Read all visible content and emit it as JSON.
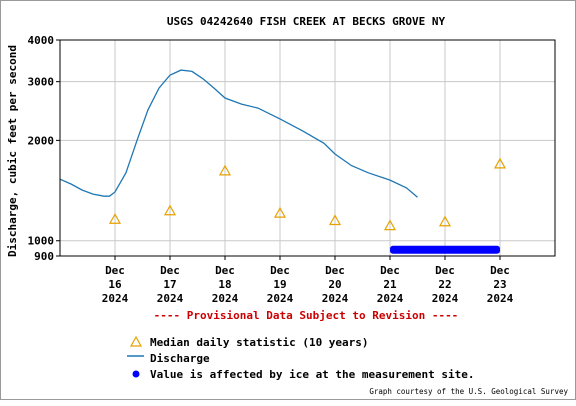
{
  "chart_data": {
    "type": "line",
    "title": "USGS 04242640 FISH CREEK AT BECKS GROVE NY",
    "ylabel": "Discharge, cubic feet per second",
    "y_scale": "log",
    "ylim": [
      900,
      4000
    ],
    "y_ticks": [
      900,
      1000,
      2000,
      3000,
      4000
    ],
    "x_ticks": [
      {
        "value": "2024-12-16",
        "lines": [
          "Dec",
          "16",
          "2024"
        ]
      },
      {
        "value": "2024-12-17",
        "lines": [
          "Dec",
          "17",
          "2024"
        ]
      },
      {
        "value": "2024-12-18",
        "lines": [
          "Dec",
          "18",
          "2024"
        ]
      },
      {
        "value": "2024-12-19",
        "lines": [
          "Dec",
          "19",
          "2024"
        ]
      },
      {
        "value": "2024-12-20",
        "lines": [
          "Dec",
          "20",
          "2024"
        ]
      },
      {
        "value": "2024-12-21",
        "lines": [
          "Dec",
          "21",
          "2024"
        ]
      },
      {
        "value": "2024-12-22",
        "lines": [
          "Dec",
          "22",
          "2024"
        ]
      },
      {
        "value": "2024-12-23",
        "lines": [
          "Dec",
          "23",
          "2024"
        ]
      }
    ],
    "xlim": [
      "2024-12-15T00:00",
      "2024-12-24T00:00"
    ],
    "series": [
      {
        "name": "Discharge",
        "color": "#1f77b4",
        "points": [
          [
            "2024-12-15T00:00",
            1530
          ],
          [
            "2024-12-15T04:48",
            1480
          ],
          [
            "2024-12-15T09:36",
            1420
          ],
          [
            "2024-12-15T14:24",
            1380
          ],
          [
            "2024-12-15T19:12",
            1360
          ],
          [
            "2024-12-15T21:36",
            1360
          ],
          [
            "2024-12-16T00:00",
            1400
          ],
          [
            "2024-12-16T04:48",
            1600
          ],
          [
            "2024-12-16T09:36",
            2000
          ],
          [
            "2024-12-16T14:24",
            2470
          ],
          [
            "2024-12-16T19:12",
            2870
          ],
          [
            "2024-12-17T00:00",
            3140
          ],
          [
            "2024-12-17T04:48",
            3250
          ],
          [
            "2024-12-17T09:36",
            3220
          ],
          [
            "2024-12-17T14:24",
            3060
          ],
          [
            "2024-12-17T19:12",
            2870
          ],
          [
            "2024-12-18T00:00",
            2680
          ],
          [
            "2024-12-18T07:12",
            2570
          ],
          [
            "2024-12-18T14:24",
            2500
          ],
          [
            "2024-12-19T00:00",
            2320
          ],
          [
            "2024-12-19T09:36",
            2140
          ],
          [
            "2024-12-19T19:12",
            1960
          ],
          [
            "2024-12-20T00:00",
            1820
          ],
          [
            "2024-12-20T07:12",
            1680
          ],
          [
            "2024-12-20T14:24",
            1600
          ],
          [
            "2024-12-21T00:00",
            1520
          ],
          [
            "2024-12-21T07:12",
            1440
          ],
          [
            "2024-12-21T12:00",
            1350
          ]
        ]
      },
      {
        "name": "Median daily statistic (10 years)",
        "color": "#e6a100",
        "points": [
          [
            "2024-12-16T00:00",
            1160
          ],
          [
            "2024-12-17T00:00",
            1230
          ],
          [
            "2024-12-18T00:00",
            1620
          ],
          [
            "2024-12-19T00:00",
            1210
          ],
          [
            "2024-12-20T00:00",
            1150
          ],
          [
            "2024-12-21T00:00",
            1110
          ],
          [
            "2024-12-22T00:00",
            1140
          ],
          [
            "2024-12-23T00:00",
            1700
          ]
        ]
      },
      {
        "name": "Value is affected by ice at the measurement site.",
        "color": "#0000ff",
        "range": [
          "2024-12-21T00:00",
          "2024-12-23T00:00"
        ],
        "value": 940
      }
    ],
    "grid": true,
    "legend_position": "bottom-left"
  },
  "notice": "---- Provisional Data Subject to Revision ----",
  "credit": "Graph courtesy of the U.S. Geological Survey",
  "colors": {
    "notice": "#cc0000",
    "grid": "#c8c8c8",
    "axis": "#000000"
  }
}
